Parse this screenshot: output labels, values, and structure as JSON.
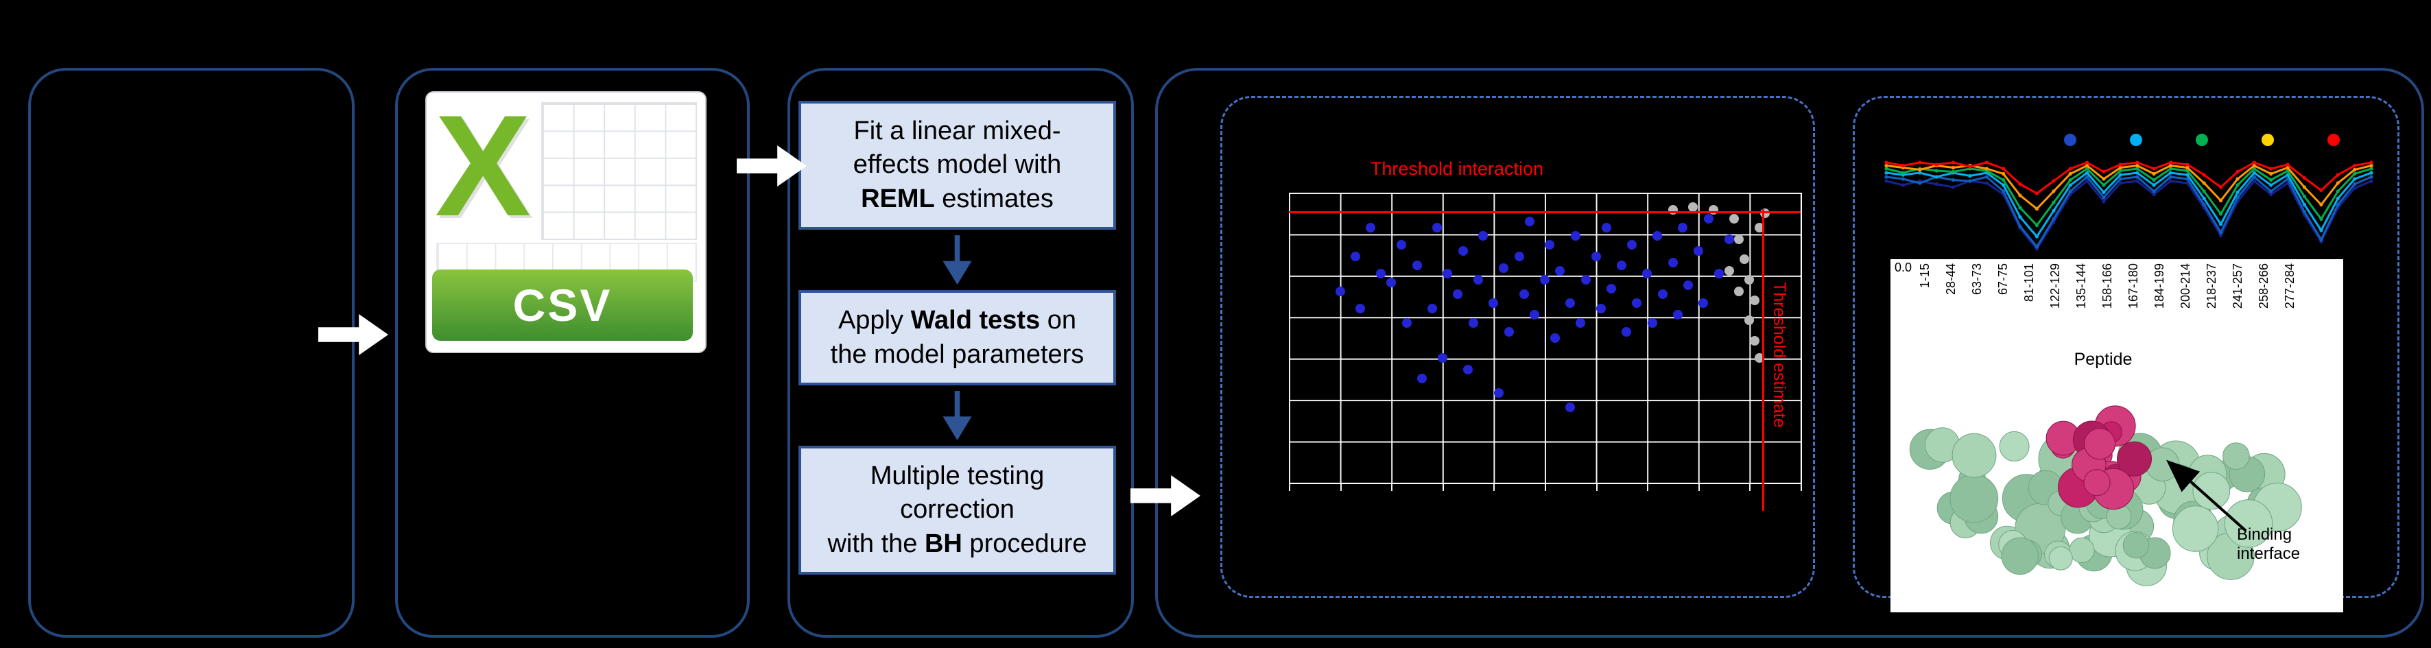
{
  "colors": {
    "background": "#000000",
    "panel_border": "#24477e",
    "dashed_border": "#4472c4",
    "step_fill": "#dae3f3",
    "step_border": "#2f5496",
    "threshold_red": "#ff0000",
    "csv_green": "#76b82a",
    "protein_green": "#9ccaa9",
    "binding_magenta": "#c42369"
  },
  "csv_panel": {
    "logo_letter": "X",
    "file_label": "CSV"
  },
  "workflow": {
    "steps": [
      {
        "lines": [
          [
            {
              "t": "Fit a linear mixed-"
            }
          ],
          [
            {
              "t": "effects model with"
            }
          ],
          [
            {
              "t": "REML",
              "b": true
            },
            {
              "t": " estimates"
            }
          ]
        ]
      },
      {
        "lines": [
          [
            {
              "t": "Apply "
            },
            {
              "t": "Wald tests",
              "b": true
            },
            {
              "t": " on"
            }
          ],
          [
            {
              "t": "the model parameters"
            }
          ]
        ]
      },
      {
        "lines": [
          [
            {
              "t": "Multiple testing"
            }
          ],
          [
            {
              "t": "correction"
            }
          ],
          [
            {
              "t": "with the "
            },
            {
              "t": "BH",
              "b": true
            },
            {
              "t": " procedure"
            }
          ]
        ]
      }
    ]
  },
  "chart_data": [
    {
      "type": "scatter",
      "title": "Threshold interaction",
      "vline_label": "Threshold estimate",
      "hline_y_pct": 6.5,
      "vline_x_pct": 92.5,
      "grid": {
        "cols": 10,
        "rows": 7,
        "color": "#ffffff"
      },
      "series": [
        {
          "name": "blue-points",
          "color": "#2426d6",
          "points": [
            [
              10,
              34
            ],
            [
              13,
              22
            ],
            [
              14,
              40
            ],
            [
              16,
              12
            ],
            [
              18,
              28
            ],
            [
              20,
              31
            ],
            [
              22,
              18
            ],
            [
              23,
              45
            ],
            [
              25,
              25
            ],
            [
              26,
              64
            ],
            [
              28,
              40
            ],
            [
              29,
              12
            ],
            [
              30,
              57
            ],
            [
              31,
              28
            ],
            [
              33,
              35
            ],
            [
              34,
              20
            ],
            [
              36,
              45
            ],
            [
              37,
              30
            ],
            [
              38,
              15
            ],
            [
              40,
              38
            ],
            [
              41,
              69
            ],
            [
              42,
              26
            ],
            [
              43,
              48
            ],
            [
              45,
              22
            ],
            [
              46,
              35
            ],
            [
              47,
              10
            ],
            [
              48,
              42
            ],
            [
              50,
              30
            ],
            [
              51,
              18
            ],
            [
              52,
              50
            ],
            [
              53,
              27
            ],
            [
              55,
              38
            ],
            [
              56,
              15
            ],
            [
              57,
              45
            ],
            [
              58,
              30
            ],
            [
              60,
              22
            ],
            [
              61,
              40
            ],
            [
              62,
              12
            ],
            [
              63,
              33
            ],
            [
              65,
              25
            ],
            [
              66,
              48
            ],
            [
              67,
              18
            ],
            [
              68,
              38
            ],
            [
              70,
              28
            ],
            [
              71,
              45
            ],
            [
              72,
              15
            ],
            [
              73,
              35
            ],
            [
              75,
              24
            ],
            [
              76,
              42
            ],
            [
              77,
              12
            ],
            [
              78,
              32
            ],
            [
              80,
              20
            ],
            [
              81,
              38
            ],
            [
              82,
              9
            ],
            [
              84,
              28
            ],
            [
              86,
              16
            ],
            [
              55,
              74
            ],
            [
              35,
              61
            ]
          ]
        },
        {
          "name": "gray-points",
          "color": "#b9b9b9",
          "points": [
            [
              75,
              6
            ],
            [
              79,
              5
            ],
            [
              83,
              6
            ],
            [
              87,
              9
            ],
            [
              88,
              16
            ],
            [
              89,
              23
            ],
            [
              90,
              30
            ],
            [
              91,
              37
            ],
            [
              90,
              44
            ],
            [
              91,
              51
            ],
            [
              92,
              12
            ],
            [
              93,
              7
            ],
            [
              88,
              34
            ],
            [
              92,
              57
            ],
            [
              86,
              27
            ]
          ]
        }
      ]
    },
    {
      "type": "line",
      "y_tick_label": "0.0",
      "legend_dots": [
        "#1f49c7",
        "#00b0f0",
        "#00b050",
        "#ffd400",
        "#ff0000"
      ],
      "series": [
        {
          "name": "s1",
          "color": "#16228f",
          "values": [
            0.74,
            0.7,
            0.74,
            0.71,
            0.68,
            0.74,
            0.72,
            0.61,
            0.28,
            0.08,
            0.34,
            0.61,
            0.74,
            0.54,
            0.72,
            0.74,
            0.61,
            0.74,
            0.72,
            0.48,
            0.21,
            0.54,
            0.74,
            0.61,
            0.72,
            0.41,
            0.15,
            0.48,
            0.67,
            0.74
          ]
        },
        {
          "name": "s2",
          "color": "#1060c0",
          "values": [
            0.78,
            0.76,
            0.72,
            0.78,
            0.75,
            0.74,
            0.78,
            0.64,
            0.3,
            0.1,
            0.37,
            0.64,
            0.78,
            0.58,
            0.76,
            0.78,
            0.64,
            0.78,
            0.76,
            0.51,
            0.24,
            0.58,
            0.78,
            0.64,
            0.76,
            0.44,
            0.17,
            0.51,
            0.71,
            0.78
          ]
        },
        {
          "name": "s3",
          "color": "#00b0f0",
          "values": [
            0.82,
            0.8,
            0.82,
            0.78,
            0.82,
            0.79,
            0.82,
            0.7,
            0.39,
            0.2,
            0.45,
            0.7,
            0.82,
            0.63,
            0.8,
            0.82,
            0.7,
            0.82,
            0.8,
            0.57,
            0.32,
            0.63,
            0.82,
            0.7,
            0.8,
            0.51,
            0.26,
            0.57,
            0.76,
            0.82
          ]
        },
        {
          "name": "s4",
          "color": "#00b050",
          "values": [
            0.86,
            0.82,
            0.86,
            0.84,
            0.83,
            0.86,
            0.84,
            0.75,
            0.48,
            0.31,
            0.53,
            0.75,
            0.86,
            0.7,
            0.84,
            0.86,
            0.75,
            0.86,
            0.84,
            0.64,
            0.42,
            0.7,
            0.86,
            0.75,
            0.84,
            0.59,
            0.37,
            0.64,
            0.81,
            0.86
          ]
        },
        {
          "name": "s5",
          "color": "#ff9900",
          "values": [
            0.89,
            0.87,
            0.85,
            0.89,
            0.87,
            0.89,
            0.86,
            0.81,
            0.6,
            0.47,
            0.64,
            0.81,
            0.89,
            0.76,
            0.87,
            0.89,
            0.81,
            0.89,
            0.87,
            0.72,
            0.55,
            0.76,
            0.89,
            0.81,
            0.87,
            0.68,
            0.51,
            0.72,
            0.85,
            0.89
          ]
        },
        {
          "name": "s6",
          "color": "#ff0000",
          "values": [
            0.92,
            0.89,
            0.92,
            0.9,
            0.92,
            0.88,
            0.92,
            0.86,
            0.71,
            0.62,
            0.74,
            0.86,
            0.92,
            0.83,
            0.9,
            0.92,
            0.86,
            0.92,
            0.9,
            0.8,
            0.68,
            0.83,
            0.92,
            0.86,
            0.9,
            0.77,
            0.65,
            0.8,
            0.89,
            0.92
          ]
        }
      ]
    }
  ],
  "peptide_axis": {
    "labels": [
      "1-15",
      "28-44",
      "63-73",
      "67-75",
      "81-101",
      "122-129",
      "135-144",
      "158-166",
      "167-180",
      "184-199",
      "200-214",
      "218-237",
      "241-257",
      "258-266",
      "277-284"
    ],
    "axis_label": "Peptide"
  },
  "protein_panel": {
    "annotation_line1": "Binding",
    "annotation_line2": "interface"
  }
}
